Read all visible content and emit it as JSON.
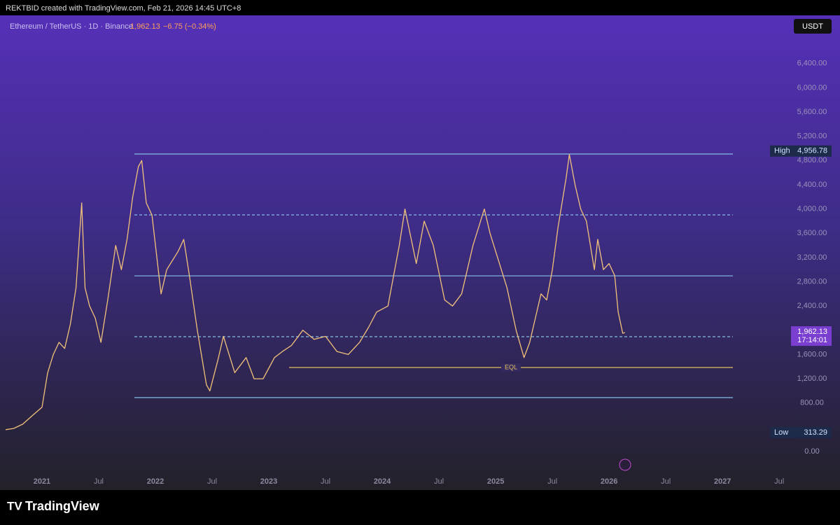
{
  "header": {
    "credit": "REKTBID created with TradingView.com, Feb 21, 2026 14:45 UTC+8"
  },
  "brand": "TradingView",
  "chart_data": {
    "type": "line",
    "title": "Ethereum / TetherUS · 1D · Binance",
    "price_label": "1,962.13",
    "change_label": "−6.75 (−0.34%)",
    "currency": "USDT",
    "xlim": [
      2020.63,
      2027.4
    ],
    "ylim": [
      -635,
      7194
    ],
    "xticks": [
      2021,
      {
        "value": 2021.5,
        "label": "Jul"
      },
      2022,
      {
        "value": 2022.5,
        "label": "Jul"
      },
      2023,
      {
        "value": 2023.5,
        "label": "Jul"
      },
      2024,
      {
        "value": 2024.5,
        "label": "Jul"
      },
      2025,
      {
        "value": 2025.5,
        "label": "Jul"
      },
      2026,
      {
        "value": 2026.5,
        "label": "Jul"
      },
      2027,
      {
        "value": 2027.5,
        "label": "Jul"
      }
    ],
    "yticks": [
      {
        "value": 0,
        "label": "0.00"
      },
      {
        "value": 800,
        "label": "800.00"
      },
      {
        "value": 1200,
        "label": "1,200.00"
      },
      {
        "value": 1600,
        "label": "1,600.00"
      },
      {
        "value": 2400,
        "label": "2,400.00"
      },
      {
        "value": 2800,
        "label": "2,800.00"
      },
      {
        "value": 3200,
        "label": "3,200.00"
      },
      {
        "value": 3600,
        "label": "3,600.00"
      },
      {
        "value": 4000,
        "label": "4,000.00"
      },
      {
        "value": 4400,
        "label": "4,400.00"
      },
      {
        "value": 4800,
        "label": "4,800.00"
      },
      {
        "value": 5200,
        "label": "5,200.00"
      },
      {
        "value": 5600,
        "label": "5,600.00"
      },
      {
        "value": 6000,
        "label": "6,000.00"
      },
      {
        "value": 6400,
        "label": "6,400.00"
      }
    ],
    "x": [
      2020.68,
      2020.75,
      2020.83,
      2020.92,
      2021.0,
      2021.05,
      2021.1,
      2021.15,
      2021.2,
      2021.25,
      2021.3,
      2021.35,
      2021.38,
      2021.42,
      2021.47,
      2021.52,
      2021.58,
      2021.65,
      2021.7,
      2021.75,
      2021.8,
      2021.85,
      2021.88,
      2021.92,
      2021.97,
      2022.05,
      2022.1,
      2022.2,
      2022.25,
      2022.3,
      2022.37,
      2022.45,
      2022.48,
      2022.55,
      2022.6,
      2022.7,
      2022.8,
      2022.87,
      2022.95,
      2023.05,
      2023.12,
      2023.2,
      2023.3,
      2023.4,
      2023.5,
      2023.6,
      2023.7,
      2023.8,
      2023.88,
      2023.95,
      2024.05,
      2024.15,
      2024.2,
      2024.3,
      2024.37,
      2024.45,
      2024.55,
      2024.62,
      2024.7,
      2024.8,
      2024.9,
      2024.95,
      2025.0,
      2025.1,
      2025.18,
      2025.25,
      2025.3,
      2025.4,
      2025.45,
      2025.5,
      2025.55,
      2025.62,
      2025.65,
      2025.7,
      2025.75,
      2025.8,
      2025.87,
      2025.9,
      2025.95,
      2026.0,
      2026.05,
      2026.08,
      2026.12,
      2026.14
    ],
    "series": [
      {
        "name": "ETHUSDT",
        "color": "#f2c27a",
        "values": [
          360,
          380,
          450,
          600,
          730,
          1300,
          1600,
          1800,
          1700,
          2100,
          2700,
          4100,
          2700,
          2400,
          2200,
          1800,
          2500,
          3400,
          3000,
          3500,
          4200,
          4700,
          4800,
          4100,
          3900,
          2600,
          3000,
          3300,
          3500,
          2900,
          2000,
          1100,
          1000,
          1500,
          1900,
          1300,
          1550,
          1200,
          1200,
          1550,
          1650,
          1750,
          2000,
          1850,
          1900,
          1650,
          1600,
          1800,
          2050,
          2300,
          2400,
          3400,
          4000,
          3100,
          3800,
          3400,
          2500,
          2400,
          2600,
          3400,
          4000,
          3600,
          3300,
          2700,
          2000,
          1550,
          1800,
          2600,
          2500,
          3000,
          3700,
          4500,
          4900,
          4400,
          4000,
          3800,
          3000,
          3500,
          3000,
          3100,
          2900,
          2300,
          1950,
          1962
        ]
      }
    ],
    "levels": [
      {
        "value": 4908,
        "color": "#86bde6",
        "dashed": false
      },
      {
        "value": 3903,
        "color": "#86bde6",
        "dashed": true
      },
      {
        "value": 2898,
        "color": "#86bde6",
        "dashed": false
      },
      {
        "value": 1894,
        "color": "#86bde6",
        "dashed": true
      },
      {
        "value": 1386,
        "color": "#e0c060",
        "dashed": false,
        "label": "EQL"
      },
      {
        "value": 889,
        "color": "#86bde6",
        "dashed": false
      }
    ],
    "high": {
      "label": "High",
      "value": 4956.78,
      "value_label": "4,956.78"
    },
    "low": {
      "label": "Low",
      "value": 313.29,
      "value_label": "313.29"
    },
    "last": {
      "value": 1962.13,
      "value_label": "1,962.13",
      "countdown": "17:14:01"
    }
  }
}
